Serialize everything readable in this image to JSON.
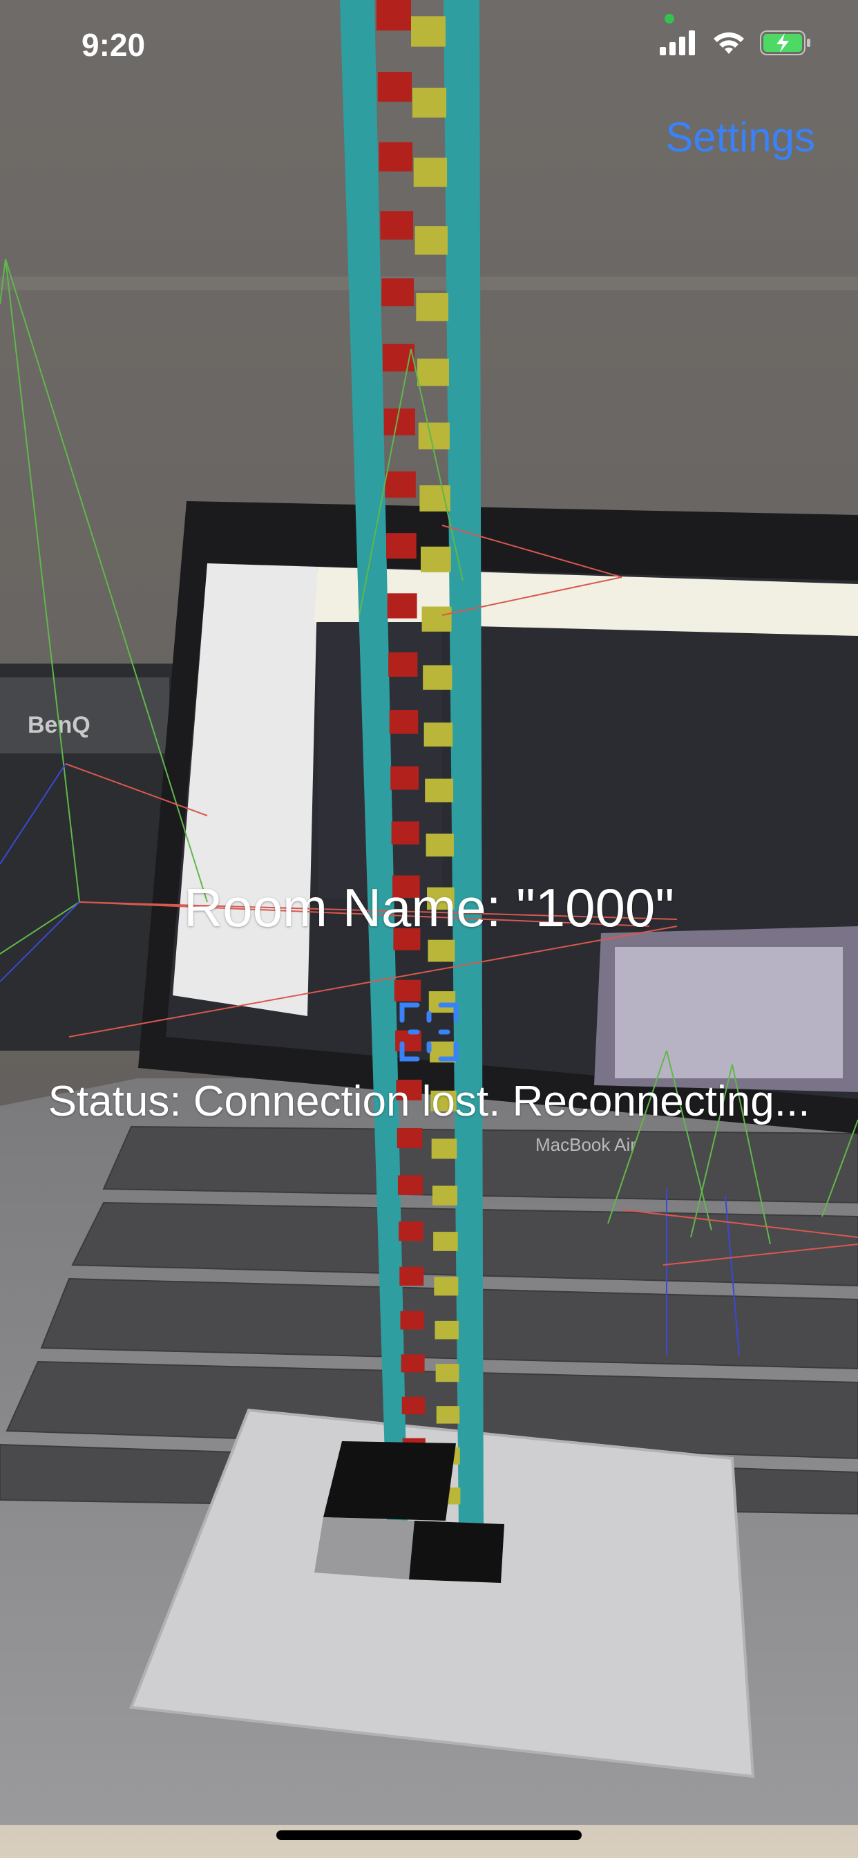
{
  "status_bar": {
    "time": "9:20",
    "icons": [
      "signal-icon",
      "wifi-icon",
      "battery-charging-icon"
    ],
    "camera_indicator_color": "#33c24d"
  },
  "nav": {
    "settings_label": "Settings",
    "accent_color": "#3a82f7"
  },
  "overlay": {
    "room_name": "Room Name: \"1000\"",
    "status": "Status: Connection lost. Reconnecting..."
  },
  "background": {
    "screen_text": "MacBook Air",
    "monitor_brand": "BenQ"
  },
  "focus_indicator": {
    "icon": "focus-square-icon",
    "color": "#3a82f7"
  }
}
